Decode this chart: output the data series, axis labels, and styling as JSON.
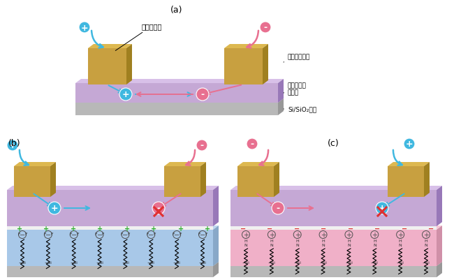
{
  "bg_color": "#ffffff",
  "purple_color": "#c5a8d5",
  "purple_dark": "#9878b8",
  "purple_top": "#d8c0e8",
  "gold_color": "#c8a040",
  "gold_top": "#ddb850",
  "gold_dark": "#a08020",
  "gray_color": "#b8b8b8",
  "gray_dark": "#989898",
  "gray_top": "#cecece",
  "blue_color": "#40b8e0",
  "pink_color": "#e87090",
  "green_color": "#30b030",
  "red_color": "#e03030",
  "blue_sam_color": "#a8c8e8",
  "blue_sam_dark": "#88a8c8",
  "blue_sam_top": "#c0d8f0",
  "pink_sam_color": "#f0b0c8",
  "pink_sam_dark": "#d090a8",
  "pink_sam_top": "#f8c8d8",
  "title_a": "(a)",
  "title_b": "(b)",
  "title_c": "(c)",
  "label_source": "ソース電極",
  "label_drain": "ドレイン電極",
  "label_semi": "有機両極性\n半導体",
  "label_substrate": "Si/SiO₂基板"
}
